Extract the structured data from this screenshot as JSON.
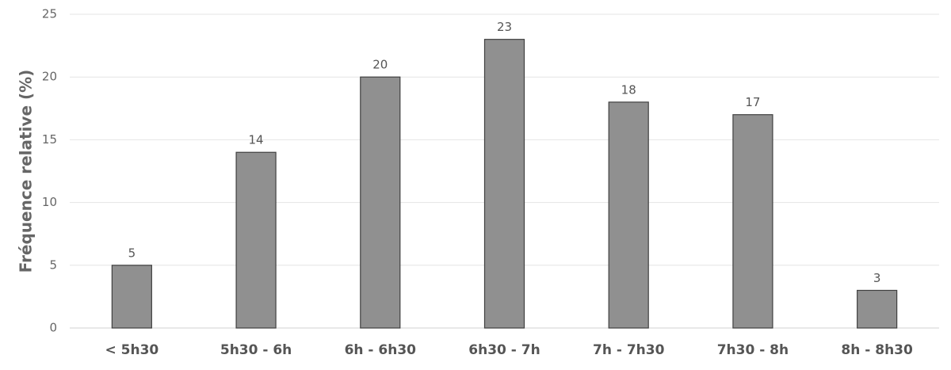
{
  "chart_data": {
    "type": "bar",
    "ylabel": "Fréquence relative (%)",
    "categories": [
      "< 5h30",
      "5h30 - 6h",
      "6h - 6h30",
      "6h30 - 7h",
      "7h - 7h30",
      "7h30 - 8h",
      "8h - 8h30"
    ],
    "values": [
      5,
      14,
      20,
      23,
      18,
      17,
      3
    ],
    "color": "#909090",
    "ylim": [
      0,
      25
    ],
    "yticks": [
      0,
      5,
      10,
      15,
      20,
      25
    ],
    "grid": true
  }
}
